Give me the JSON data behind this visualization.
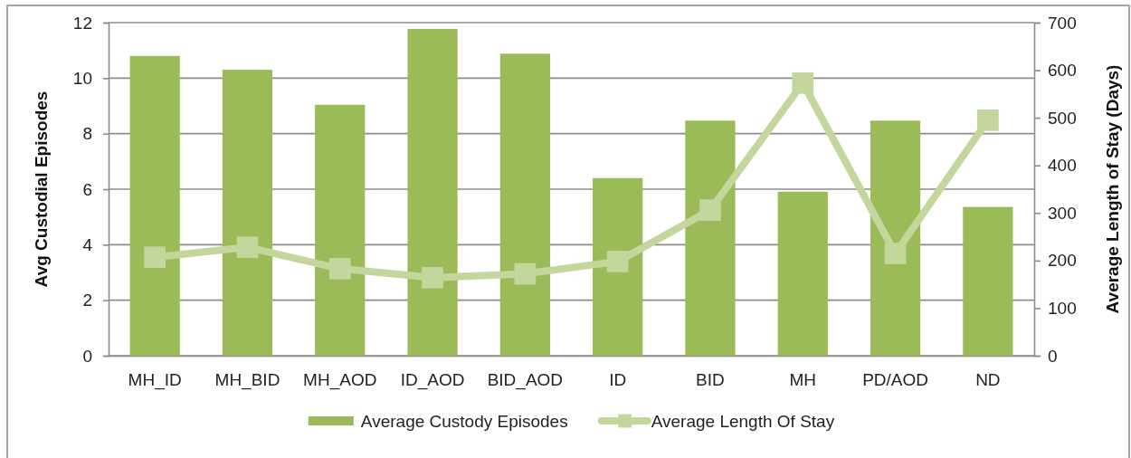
{
  "chart_data": {
    "type": "bar",
    "categories": [
      "MH_ID",
      "MH_BID",
      "MH_AOD",
      "ID_AOD",
      "BID_AOD",
      "ID",
      "BID",
      "MH",
      "PD/AOD",
      "ND"
    ],
    "ylabel": "Avg Custodial Episodes",
    "y2label": "Average Length of Stay (Days)",
    "ylim": [
      0,
      12
    ],
    "yticks": [
      0,
      2,
      4,
      6,
      8,
      10,
      12
    ],
    "y2lim": [
      0,
      700
    ],
    "y2ticks": [
      0,
      100,
      200,
      300,
      400,
      500,
      600,
      700
    ],
    "grid": "y",
    "legend": "bottom",
    "marker": "square",
    "series": [
      {
        "name": "Average Custody Episodes",
        "color": "#9bbb59",
        "values": [
          10.8,
          10.3,
          9.04,
          11.77,
          10.88,
          6.4,
          8.47,
          5.91,
          8.47,
          5.36
        ]
      },
      {
        "name": "Average Length Of Stay",
        "type": "line",
        "axis": "y2",
        "color": "#c3d69b",
        "values": [
          207,
          228,
          183,
          164,
          172,
          198,
          306,
          573,
          215,
          495
        ]
      }
    ]
  }
}
